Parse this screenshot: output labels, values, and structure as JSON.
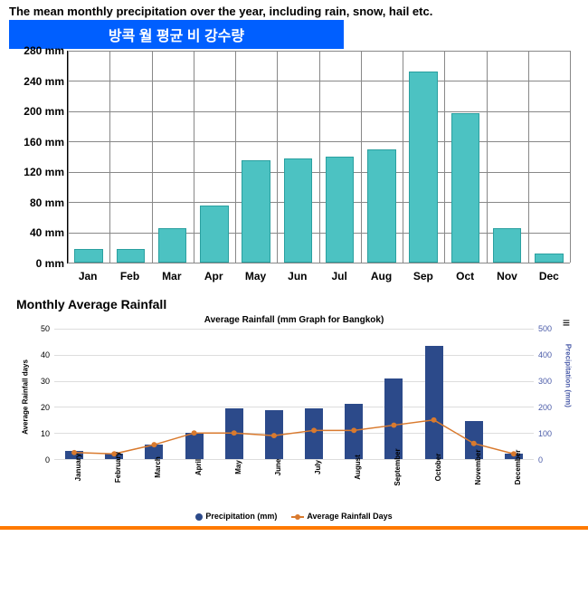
{
  "description": "The mean monthly precipitation over the year, including rain, snow, hail etc.",
  "banner_title": "방콕 월 평균 비 강수량",
  "banner_bg": "#005fff",
  "chart1": {
    "type": "bar",
    "categories": [
      "Jan",
      "Feb",
      "Mar",
      "Apr",
      "May",
      "Jun",
      "Jul",
      "Aug",
      "Sep",
      "Oct",
      "Nov",
      "Dec"
    ],
    "values": [
      18,
      18,
      45,
      75,
      135,
      138,
      140,
      150,
      252,
      198,
      45,
      12
    ],
    "ylim": [
      0,
      280
    ],
    "ytick_step": 40,
    "y_suffix": " mm",
    "bar_color": "#4cc2c2",
    "bar_border": "#2aa0a0",
    "grid_color": "#888888",
    "background": "#ffffff"
  },
  "subtitle": "Monthly Average Rainfall",
  "chart2": {
    "type": "combo",
    "title": "Average Rainfall (mm Graph for Bangkok)",
    "left_axis_label": "Average Rainfall days",
    "right_axis_label": "Precipitation (mm)",
    "categories": [
      "January",
      "February",
      "March",
      "April",
      "May",
      "June",
      "July",
      "August",
      "September",
      "October",
      "November",
      "December"
    ],
    "bar_values": [
      30,
      22,
      55,
      100,
      195,
      188,
      195,
      212,
      310,
      435,
      145,
      22
    ],
    "line_values": [
      2.5,
      2,
      5.5,
      10,
      10,
      9,
      11,
      11,
      13,
      15,
      6,
      2
    ],
    "left_ylim": [
      0,
      50
    ],
    "left_tick_step": 10,
    "right_ylim": [
      0,
      500
    ],
    "right_tick_step": 100,
    "bar_color": "#2c4a8a",
    "line_color": "#d97a2e",
    "grid_color": "#dddddd",
    "hamburger": "≡"
  },
  "legend": {
    "items": [
      {
        "label": "Precipitation (mm)",
        "type": "dot",
        "color": "#2c4a8a"
      },
      {
        "label": "Average Rainfall Days",
        "type": "line",
        "color": "#d97a2e"
      }
    ]
  },
  "bottom_bar_color": "#ff7a00"
}
